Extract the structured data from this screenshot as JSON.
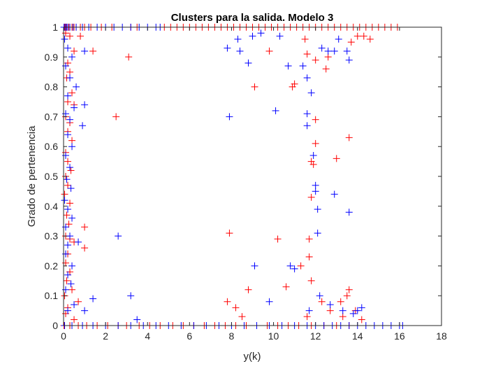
{
  "chart_data": {
    "type": "scatter",
    "title": "Clusters para  la salida. Modelo 3",
    "xlabel": "y(k)",
    "ylabel": "Grado de pertenencia",
    "xlim": [
      0,
      18
    ],
    "ylim": [
      0,
      1
    ],
    "xticks": [
      0,
      2,
      4,
      6,
      8,
      10,
      12,
      14,
      16,
      18
    ],
    "yticks": [
      0,
      0.1,
      0.2,
      0.3,
      0.4,
      0.5,
      0.6,
      0.7,
      0.8,
      0.9,
      1
    ],
    "grid": false,
    "marker": "+",
    "series": [
      {
        "color": "#ff0000",
        "points": [
          [
            0.05,
            1
          ],
          [
            0.1,
            1
          ],
          [
            0.15,
            1
          ],
          [
            0.2,
            1
          ],
          [
            0.25,
            1
          ],
          [
            0.3,
            1
          ],
          [
            0.4,
            1
          ],
          [
            0.5,
            1
          ],
          [
            0.6,
            1
          ],
          [
            0.8,
            1
          ],
          [
            1.0,
            1
          ],
          [
            1.3,
            1
          ],
          [
            1.8,
            1
          ],
          [
            2.3,
            1
          ],
          [
            3.2,
            1
          ],
          [
            3.5,
            1
          ],
          [
            4.8,
            1
          ],
          [
            5.1,
            1
          ],
          [
            5.4,
            1
          ],
          [
            5.7,
            1
          ],
          [
            6.0,
            1
          ],
          [
            6.3,
            1
          ],
          [
            6.6,
            1
          ],
          [
            6.9,
            1
          ],
          [
            7.2,
            1
          ],
          [
            7.5,
            1
          ],
          [
            7.8,
            1
          ],
          [
            8.1,
            1
          ],
          [
            8.4,
            1
          ],
          [
            8.7,
            1
          ],
          [
            9.0,
            1
          ],
          [
            9.3,
            1
          ],
          [
            9.6,
            1
          ],
          [
            9.9,
            1
          ],
          [
            10.2,
            1
          ],
          [
            10.5,
            1
          ],
          [
            10.8,
            1
          ],
          [
            11.1,
            1
          ],
          [
            11.4,
            1
          ],
          [
            11.7,
            1
          ],
          [
            12.0,
            1
          ],
          [
            12.3,
            1
          ],
          [
            12.6,
            1
          ],
          [
            12.9,
            1
          ],
          [
            13.2,
            1
          ],
          [
            13.5,
            1
          ],
          [
            13.8,
            1
          ],
          [
            14.1,
            1
          ],
          [
            14.4,
            1
          ],
          [
            14.7,
            1
          ],
          [
            15.0,
            1
          ],
          [
            15.3,
            1
          ],
          [
            15.6,
            1
          ],
          [
            15.9,
            1
          ],
          [
            0.1,
            0.98
          ],
          [
            0.3,
            0.97
          ],
          [
            0.8,
            0.97
          ],
          [
            1.4,
            0.92
          ],
          [
            0.5,
            0.92
          ],
          [
            0.2,
            0.88
          ],
          [
            3.1,
            0.9
          ],
          [
            0.3,
            0.85
          ],
          [
            0.15,
            0.83
          ],
          [
            0.4,
            0.78
          ],
          [
            0.2,
            0.75
          ],
          [
            0.5,
            0.74
          ],
          [
            0.1,
            0.7
          ],
          [
            2.5,
            0.7
          ],
          [
            0.3,
            0.68
          ],
          [
            0.2,
            0.65
          ],
          [
            0.4,
            0.62
          ],
          [
            0.1,
            0.58
          ],
          [
            0.2,
            0.55
          ],
          [
            0.35,
            0.52
          ],
          [
            0.1,
            0.5
          ],
          [
            0.2,
            0.47
          ],
          [
            0.05,
            0.44
          ],
          [
            0.3,
            0.41
          ],
          [
            0.15,
            0.37
          ],
          [
            0.25,
            0.34
          ],
          [
            1.0,
            0.33
          ],
          [
            0.1,
            0.3
          ],
          [
            0.3,
            0.29
          ],
          [
            0.5,
            0.28
          ],
          [
            1.0,
            0.26
          ],
          [
            0.2,
            0.24
          ],
          [
            0.1,
            0.21
          ],
          [
            0.3,
            0.18
          ],
          [
            0.15,
            0.15
          ],
          [
            0.4,
            0.12
          ],
          [
            0.05,
            0.1
          ],
          [
            0.7,
            0.08
          ],
          [
            0.2,
            0.06
          ],
          [
            0.1,
            0.04
          ],
          [
            0.5,
            0.02
          ],
          [
            7.9,
            0.31
          ],
          [
            7.8,
            0.08
          ],
          [
            8.2,
            0.06
          ],
          [
            8.5,
            0.03
          ],
          [
            8.8,
            0.12
          ],
          [
            9.1,
            0.8
          ],
          [
            9.8,
            0.92
          ],
          [
            10.2,
            0.29
          ],
          [
            10.6,
            0.13
          ],
          [
            10.9,
            0.8
          ],
          [
            11.0,
            0.81
          ],
          [
            11.3,
            0.2
          ],
          [
            11.6,
            0.03
          ],
          [
            11.5,
            0.96
          ],
          [
            11.6,
            0.91
          ],
          [
            11.7,
            0.29
          ],
          [
            11.7,
            0.23
          ],
          [
            11.8,
            0.15
          ],
          [
            11.8,
            0.43
          ],
          [
            11.9,
            0.54
          ],
          [
            11.8,
            0.55
          ],
          [
            12.0,
            0.61
          ],
          [
            12.0,
            0.69
          ],
          [
            12.0,
            0.89
          ],
          [
            12.3,
            0.08
          ],
          [
            12.5,
            0.86
          ],
          [
            12.6,
            0.9
          ],
          [
            12.7,
            0.05
          ],
          [
            13.0,
            0.56
          ],
          [
            13.2,
            0.08
          ],
          [
            13.3,
            0.03
          ],
          [
            13.5,
            0.1
          ],
          [
            13.6,
            0.12
          ],
          [
            13.6,
            0.63
          ],
          [
            13.7,
            0.95
          ],
          [
            14.0,
            0.97
          ],
          [
            14.3,
            0.97
          ],
          [
            14.6,
            0.96
          ],
          [
            13.9,
            0.05
          ],
          [
            14.2,
            0.02
          ],
          [
            0.02,
            0.0
          ],
          [
            0.3,
            0.0
          ],
          [
            0.7,
            0.0
          ],
          [
            1.1,
            0.0
          ],
          [
            1.6,
            0.0
          ],
          [
            2.1,
            0.0
          ],
          [
            2.6,
            0.0
          ],
          [
            3.0,
            0.0
          ],
          [
            3.6,
            0.0
          ],
          [
            4.1,
            0.0
          ],
          [
            4.6,
            0.0
          ],
          [
            5.2,
            0.0
          ],
          [
            5.7,
            0.0
          ],
          [
            6.2,
            0.0
          ],
          [
            6.7,
            0.0
          ],
          [
            7.2,
            0.0
          ],
          [
            7.7,
            0.0
          ],
          [
            8.2,
            0.0
          ],
          [
            8.7,
            0.0
          ],
          [
            9.2,
            0.0
          ],
          [
            9.7,
            0.0
          ],
          [
            10.2,
            0.0
          ],
          [
            10.7,
            0.0
          ],
          [
            11.2,
            0.0
          ],
          [
            11.8,
            0.0
          ],
          [
            12.4,
            0.0
          ],
          [
            13.0,
            0.0
          ],
          [
            13.6,
            0.0
          ]
        ]
      },
      {
        "color": "#0000ff",
        "points": [
          [
            0.02,
            1
          ],
          [
            0.08,
            1
          ],
          [
            0.14,
            1
          ],
          [
            0.2,
            1
          ],
          [
            0.3,
            1
          ],
          [
            0.45,
            1
          ],
          [
            0.6,
            1
          ],
          [
            0.9,
            1
          ],
          [
            1.2,
            1
          ],
          [
            1.6,
            1
          ],
          [
            2.0,
            1
          ],
          [
            2.4,
            1
          ],
          [
            2.8,
            1
          ],
          [
            3.2,
            1
          ],
          [
            3.6,
            1
          ],
          [
            4.0,
            1
          ],
          [
            4.4,
            1
          ],
          [
            4.6,
            1
          ],
          [
            0.05,
            0.96
          ],
          [
            0.2,
            0.93
          ],
          [
            1.0,
            0.92
          ],
          [
            0.4,
            0.9
          ],
          [
            0.1,
            0.87
          ],
          [
            0.3,
            0.83
          ],
          [
            0.6,
            0.8
          ],
          [
            0.2,
            0.77
          ],
          [
            1.0,
            0.74
          ],
          [
            0.5,
            0.73
          ],
          [
            0.1,
            0.71
          ],
          [
            0.3,
            0.69
          ],
          [
            0.9,
            0.67
          ],
          [
            0.2,
            0.64
          ],
          [
            0.4,
            0.6
          ],
          [
            0.1,
            0.57
          ],
          [
            0.3,
            0.53
          ],
          [
            0.15,
            0.49
          ],
          [
            0.35,
            0.46
          ],
          [
            0.05,
            0.42
          ],
          [
            0.2,
            0.39
          ],
          [
            0.4,
            0.36
          ],
          [
            0.1,
            0.33
          ],
          [
            2.6,
            0.3
          ],
          [
            0.3,
            0.3
          ],
          [
            0.2,
            0.27
          ],
          [
            0.7,
            0.28
          ],
          [
            0.1,
            0.24
          ],
          [
            0.4,
            0.2
          ],
          [
            0.2,
            0.17
          ],
          [
            0.35,
            0.14
          ],
          [
            0.1,
            0.12
          ],
          [
            1.4,
            0.09
          ],
          [
            3.2,
            0.1
          ],
          [
            0.5,
            0.07
          ],
          [
            0.2,
            0.05
          ],
          [
            1.0,
            0.05
          ],
          [
            3.5,
            0.02
          ],
          [
            7.8,
            0.93
          ],
          [
            7.9,
            0.7
          ],
          [
            8.3,
            0.96
          ],
          [
            8.4,
            0.92
          ],
          [
            8.8,
            0.88
          ],
          [
            9.0,
            0.97
          ],
          [
            9.1,
            0.2
          ],
          [
            9.4,
            0.98
          ],
          [
            9.8,
            0.08
          ],
          [
            10.1,
            0.72
          ],
          [
            10.3,
            0.97
          ],
          [
            10.7,
            0.87
          ],
          [
            10.8,
            0.2
          ],
          [
            11.0,
            0.19
          ],
          [
            11.4,
            0.87
          ],
          [
            11.6,
            0.83
          ],
          [
            11.6,
            0.71
          ],
          [
            11.6,
            0.67
          ],
          [
            11.7,
            0.05
          ],
          [
            11.8,
            0.78
          ],
          [
            11.9,
            0.57
          ],
          [
            12.0,
            0.45
          ],
          [
            12.0,
            0.47
          ],
          [
            12.1,
            0.39
          ],
          [
            12.1,
            0.31
          ],
          [
            12.2,
            0.1
          ],
          [
            12.3,
            0.93
          ],
          [
            12.6,
            0.92
          ],
          [
            12.7,
            0.07
          ],
          [
            12.9,
            0.44
          ],
          [
            12.9,
            0.92
          ],
          [
            13.1,
            0.96
          ],
          [
            13.3,
            0.05
          ],
          [
            13.5,
            0.92
          ],
          [
            13.6,
            0.38
          ],
          [
            13.6,
            0.89
          ],
          [
            14.0,
            0.05
          ],
          [
            14.2,
            0.06
          ],
          [
            13.8,
            0.04
          ],
          [
            0.05,
            0.0
          ],
          [
            0.4,
            0.0
          ],
          [
            0.9,
            0.0
          ],
          [
            1.4,
            0.0
          ],
          [
            2.0,
            0.0
          ],
          [
            2.6,
            0.0
          ],
          [
            3.2,
            0.0
          ],
          [
            3.8,
            0.0
          ],
          [
            4.4,
            0.0
          ],
          [
            5.0,
            0.0
          ],
          [
            5.6,
            0.0
          ],
          [
            6.2,
            0.0
          ],
          [
            6.8,
            0.0
          ],
          [
            7.4,
            0.0
          ],
          [
            8.0,
            0.0
          ],
          [
            8.6,
            0.0
          ],
          [
            9.2,
            0.0
          ],
          [
            9.8,
            0.0
          ],
          [
            10.4,
            0.0
          ],
          [
            11.0,
            0.0
          ],
          [
            11.6,
            0.0
          ],
          [
            12.0,
            0.0
          ],
          [
            12.4,
            0.0
          ],
          [
            12.8,
            0.0
          ],
          [
            13.2,
            0.0
          ],
          [
            13.6,
            0.0
          ],
          [
            14.0,
            0.0
          ],
          [
            14.4,
            0.0
          ],
          [
            14.8,
            0.0
          ],
          [
            15.2,
            0.0
          ],
          [
            15.6,
            0.0
          ],
          [
            16.0,
            0.0
          ],
          [
            16.15,
            0.0
          ]
        ]
      }
    ]
  }
}
